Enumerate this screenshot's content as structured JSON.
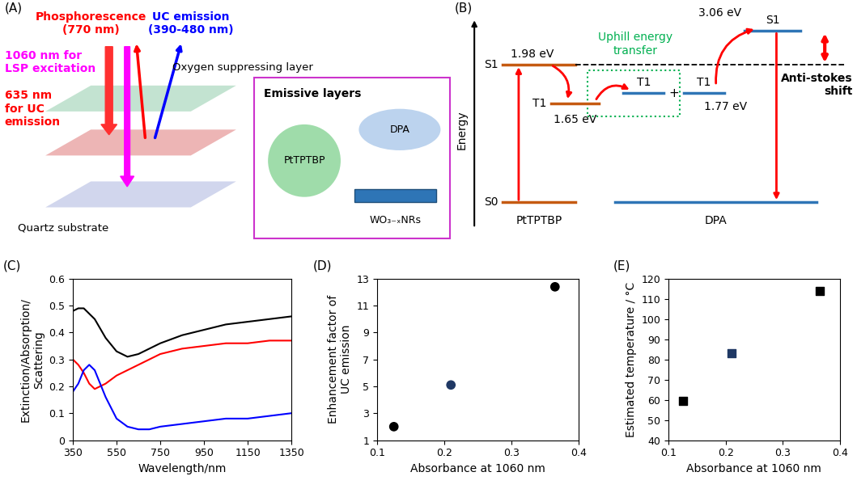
{
  "chart_data": [
    {
      "type": "line",
      "annotations": [
        "(C)"
      ],
      "x_label": "Wavelength/nm",
      "y_label": "Extinction/Absorption/\nScattering",
      "x": [
        350,
        375,
        400,
        425,
        450,
        500,
        550,
        600,
        650,
        700,
        750,
        850,
        950,
        1050,
        1150,
        1250,
        1350
      ],
      "series": [
        {
          "color": "#000000",
          "values": [
            0.48,
            0.49,
            0.49,
            0.47,
            0.45,
            0.38,
            0.33,
            0.31,
            0.32,
            0.34,
            0.36,
            0.39,
            0.41,
            0.43,
            0.44,
            0.45,
            0.46
          ]
        },
        {
          "color": "#ff0000",
          "values": [
            0.3,
            0.28,
            0.25,
            0.21,
            0.19,
            0.21,
            0.24,
            0.26,
            0.28,
            0.3,
            0.32,
            0.34,
            0.35,
            0.36,
            0.36,
            0.37,
            0.37
          ]
        },
        {
          "color": "#0000ff",
          "values": [
            0.18,
            0.21,
            0.26,
            0.28,
            0.26,
            0.16,
            0.08,
            0.05,
            0.04,
            0.04,
            0.05,
            0.06,
            0.07,
            0.08,
            0.08,
            0.09,
            0.1
          ]
        }
      ],
      "xlim": [
        350,
        1350
      ],
      "xticks": [
        350,
        550,
        750,
        950,
        1150,
        1350
      ],
      "ylim": [
        0,
        0.6
      ],
      "yticks": [
        0,
        0.1,
        0.2,
        0.3,
        0.4,
        0.5,
        0.6
      ],
      "grid": false
    },
    {
      "type": "scatter",
      "annotations": [
        "(D)"
      ],
      "x_label": "Absorbance at 1060 nm",
      "y_label": "Enhancement factor of\nUC emission",
      "x": [
        0.125,
        0.21,
        0.365
      ],
      "values": [
        2.0,
        5.1,
        12.4
      ],
      "colors": [
        "#000000",
        "#1f3864",
        "#000000"
      ],
      "marker": "circle",
      "xlim": [
        0.1,
        0.4
      ],
      "xticks": [
        0.1,
        0.2,
        0.3,
        0.4
      ],
      "ylim": [
        1,
        13
      ],
      "yticks": [
        1,
        3,
        5,
        7,
        9,
        11,
        13
      ],
      "grid": false
    },
    {
      "type": "scatter",
      "annotations": [
        "(E)"
      ],
      "x_label": "Absorbance at 1060 nm",
      "y_label": "Estimated temperature / °C",
      "x": [
        0.125,
        0.21,
        0.365
      ],
      "values": [
        59.5,
        83,
        114
      ],
      "colors": [
        "#000000",
        "#1f3864",
        "#000000"
      ],
      "marker": "square",
      "xlim": [
        0.1,
        0.4
      ],
      "xticks": [
        0.1,
        0.2,
        0.3,
        0.4
      ],
      "ylim": [
        40,
        120
      ],
      "yticks": [
        40,
        50,
        60,
        70,
        80,
        90,
        100,
        110,
        120
      ],
      "grid": false
    }
  ],
  "diagram_A": {
    "label": "(A)",
    "phosphorescence": "Phosphorescence\n(770 nm)",
    "uc_emission": "UC emission\n(390-480 nm)",
    "lsp_excitation": "1060 nm for\nLSP excitation",
    "uc_excitation": "635 nm\nfor UC\nemission",
    "top_layer": "Oxygen suppressing layer",
    "substrate": "Quartz substrate",
    "inset_title": "Emissive layers",
    "molecules": [
      "PtTPTBP",
      "DPA",
      "WO₃₋ₓNRs"
    ]
  },
  "diagram_B": {
    "label": "(B)",
    "axis": "Energy",
    "donor": "PtTPTBP",
    "acceptor": "DPA",
    "singlet": "S1",
    "triplet": "T1",
    "ground": "S0",
    "energies": [
      "1.98 eV",
      "1.65 eV",
      "1.77 eV",
      "3.06 eV"
    ],
    "uphill": "Uphill energy\ntransfer",
    "plus": "+",
    "shift": "Anti-stokes\nshift"
  }
}
